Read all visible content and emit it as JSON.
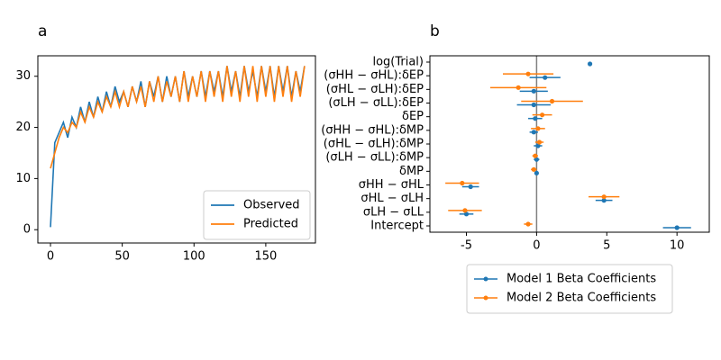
{
  "chart_data": [
    {
      "type": "line",
      "title": "a",
      "x": [
        0,
        3,
        6,
        9,
        12,
        15,
        18,
        21,
        24,
        27,
        30,
        33,
        36,
        39,
        42,
        45,
        48,
        51,
        54,
        57,
        60,
        63,
        66,
        69,
        72,
        75,
        78,
        81,
        84,
        87,
        90,
        93,
        96,
        99,
        102,
        105,
        108,
        111,
        114,
        117,
        120,
        123,
        126,
        129,
        132,
        135,
        138,
        141,
        144,
        147,
        150,
        153,
        156,
        159,
        162,
        165,
        168,
        171,
        174,
        177
      ],
      "series": [
        {
          "name": "Observed",
          "color": "#1f77b4",
          "values": [
            0.5,
            17,
            19,
            21,
            18,
            22,
            20,
            24,
            21,
            25,
            22,
            26,
            23,
            27,
            24,
            28,
            25,
            27,
            24,
            28,
            25,
            29,
            24,
            29,
            26,
            30,
            25,
            30,
            26,
            30,
            25,
            31,
            26,
            30,
            26,
            31,
            26,
            31,
            27,
            31,
            26,
            32,
            27,
            31,
            26,
            32,
            27,
            31,
            26,
            32,
            27,
            32,
            26,
            32,
            27,
            32,
            26,
            31,
            27,
            32
          ]
        },
        {
          "name": "Predicted",
          "color": "#ff7f0e",
          "values": [
            12,
            15,
            18,
            20,
            19,
            21,
            20,
            23,
            21,
            24,
            22,
            25,
            23,
            26,
            24,
            27,
            24,
            27,
            24,
            28,
            25,
            28,
            24,
            29,
            25,
            30,
            25,
            29,
            26,
            30,
            25,
            31,
            25,
            30,
            26,
            31,
            25,
            31,
            26,
            31,
            25,
            32,
            26,
            31,
            25,
            32,
            26,
            32,
            25,
            32,
            26,
            32,
            25,
            32,
            26,
            32,
            25,
            31,
            26,
            32
          ]
        }
      ],
      "xlim": [
        -8.8,
        184.6
      ],
      "xticks": [
        0,
        50,
        100,
        150
      ],
      "ylim": [
        -2.6,
        34
      ],
      "yticks": [
        0,
        10,
        20,
        30
      ],
      "legend": "lower right"
    },
    {
      "type": "errorbar",
      "title": "b",
      "categories": [
        "log(Trial)",
        "(σHH − σHL):δEP",
        "(σHL − σLH):δEP",
        "(σLH − σLL):δEP",
        "δEP",
        "(σHH − σHL):δMP",
        "(σHL − σLH):δMP",
        "(σLH − σLL):δMP",
        "δMP",
        "σHH − σHL",
        "σHL − σLH",
        "σLH − σLL",
        "Intercept"
      ],
      "series": [
        {
          "name": "Model 1 Beta Coefficients",
          "color": "#1f77b4",
          "values": [
            3.8,
            0.6,
            -0.2,
            -0.2,
            -0.1,
            -0.2,
            0.1,
            0.0,
            0.0,
            -4.7,
            4.8,
            -5.0,
            10.0
          ],
          "errors": [
            0.1,
            1.1,
            1.0,
            1.2,
            0.5,
            0.3,
            0.3,
            0.2,
            0.1,
            0.6,
            0.6,
            0.5,
            1.0
          ]
        },
        {
          "name": "Model 2 Beta Coefficients",
          "color": "#ff7f0e",
          "values": [
            null,
            -0.6,
            -1.3,
            1.1,
            0.4,
            0.1,
            0.2,
            -0.1,
            -0.2,
            -5.3,
            4.8,
            -5.1,
            -0.6
          ],
          "errors": [
            null,
            1.8,
            2.0,
            2.2,
            0.7,
            0.5,
            0.3,
            0.2,
            0.2,
            1.2,
            1.1,
            1.2,
            0.3
          ]
        }
      ],
      "xlim": [
        -7.6,
        12.3
      ],
      "xticks": [
        -5,
        0,
        5,
        10
      ],
      "legend": "below"
    }
  ]
}
